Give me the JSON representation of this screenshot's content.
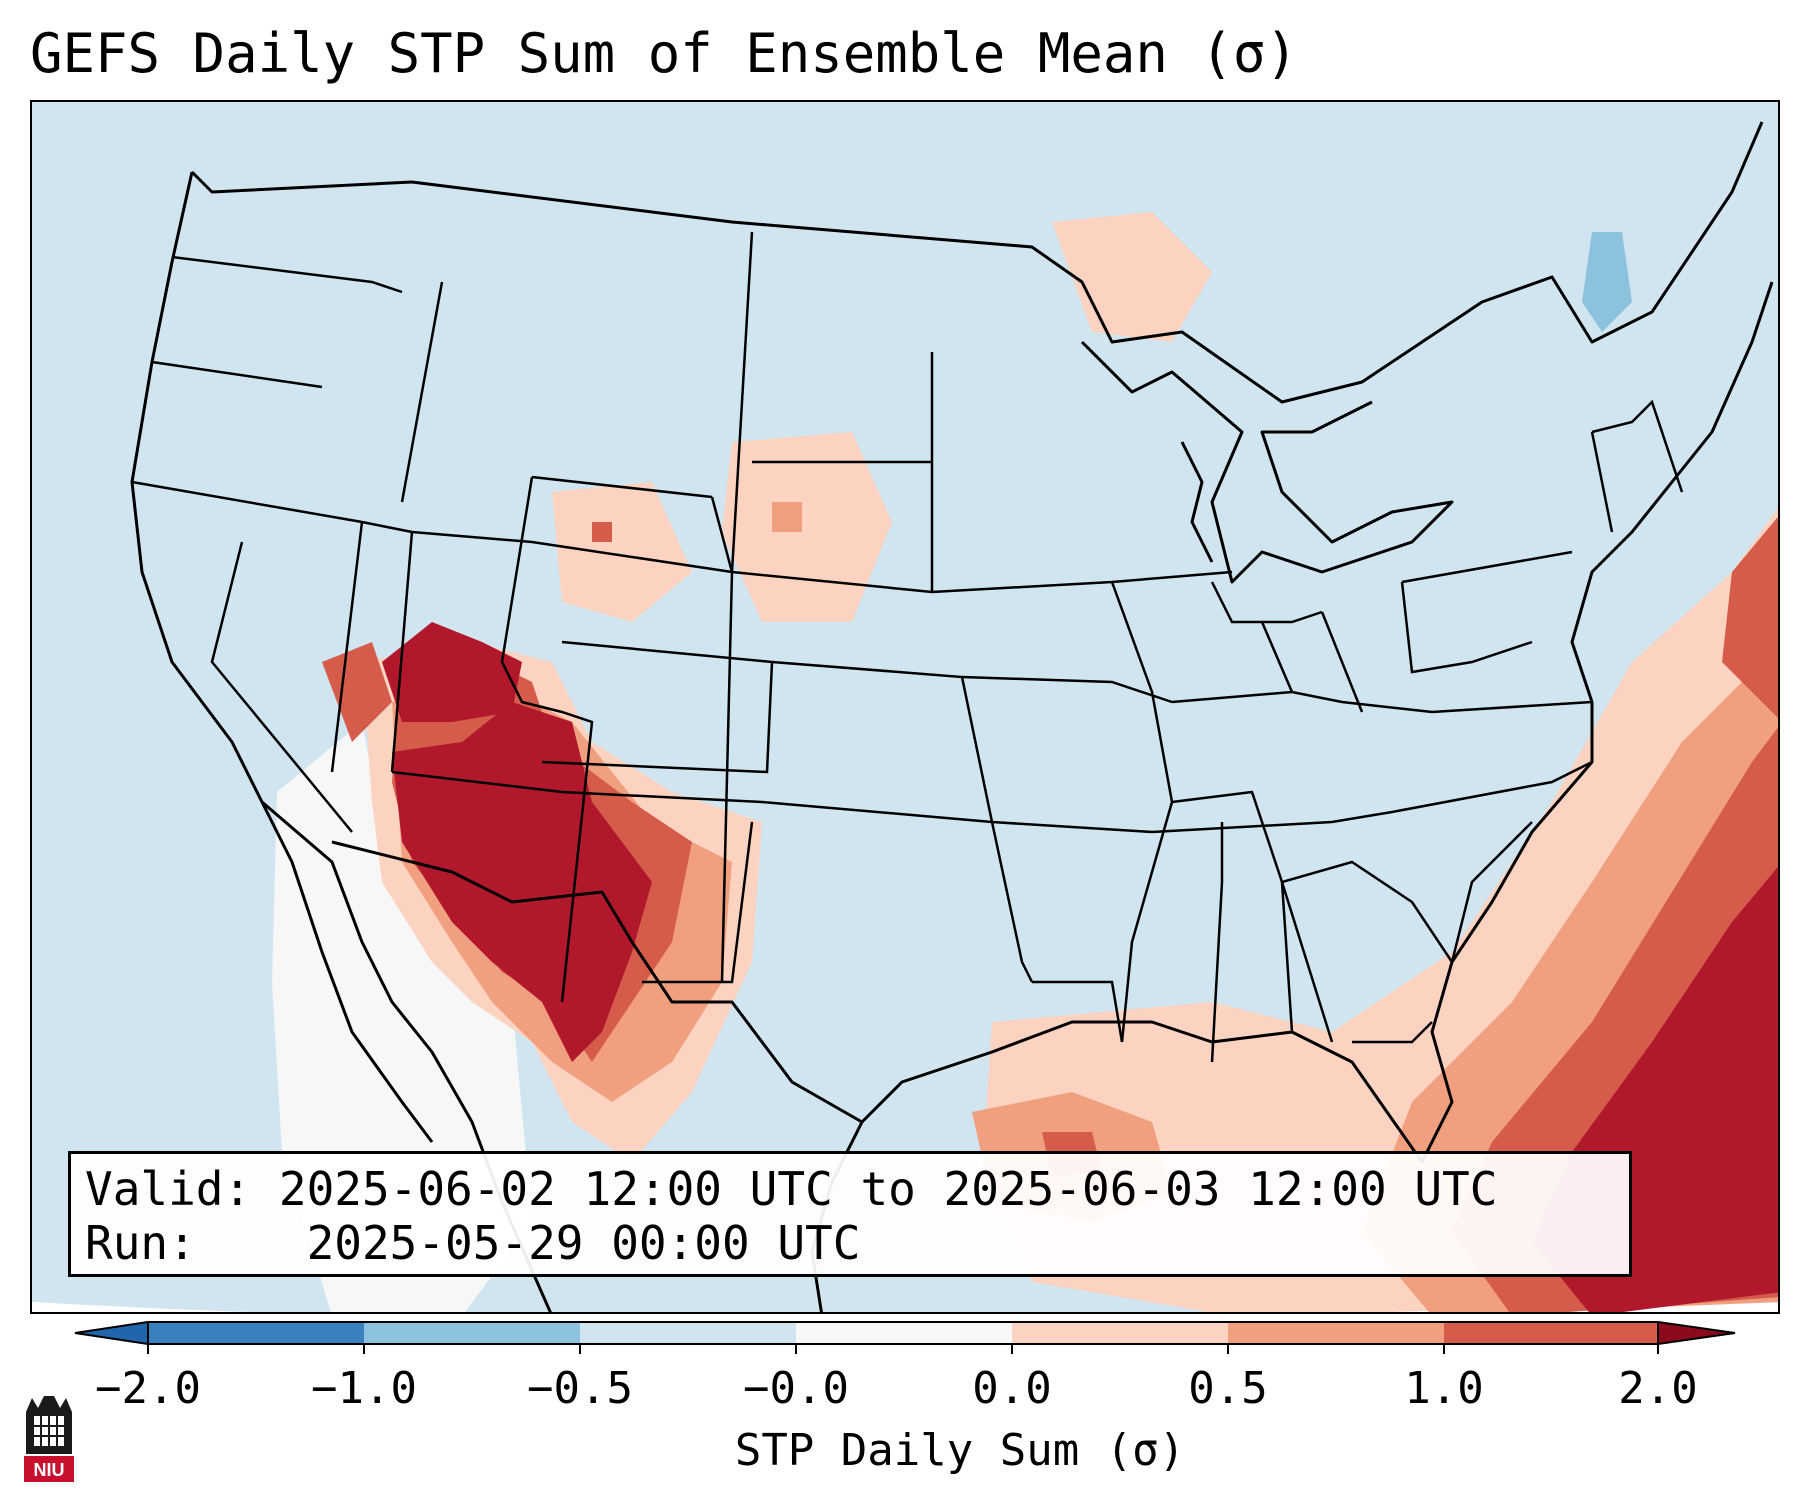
{
  "title": "GEFS Daily STP Sum of Ensemble Mean (σ)",
  "info": {
    "valid_label": "Valid:",
    "valid_value": "2025-06-02 12:00 UTC to 2025-06-03 12:00 UTC",
    "run_label": "Run:",
    "run_value": "2025-05-29 00:00 UTC"
  },
  "colorbar": {
    "label": "STP Daily Sum (σ)",
    "ticks": [
      "−2.0",
      "−1.0",
      "−0.5",
      "−0.0",
      "0.0",
      "0.5",
      "1.0",
      "2.0"
    ],
    "colors": [
      "#3a82bf",
      "#8cc2de",
      "#d1e5f0",
      "#f7f7f7",
      "#fbd3c0",
      "#f0a07f",
      "#d55c4b",
      "#b2182b"
    ]
  },
  "map": {
    "background_color": "#d1e5f0",
    "region": "Continental United States",
    "anomaly_areas": [
      {
        "area": "Arizona / New Mexico / West Texas",
        "level": ">2.0"
      },
      {
        "area": "Utah / Nevada",
        "level": ">2.0"
      },
      {
        "area": "Western Atlantic / Bahamas",
        "level": "1.0 to 2.0"
      },
      {
        "area": "Gulf of Mexico",
        "level": "0.0 to 1.0"
      },
      {
        "area": "Northern Plains",
        "level": "0.0 to 1.0"
      }
    ]
  },
  "logo": {
    "text": "NIU"
  }
}
